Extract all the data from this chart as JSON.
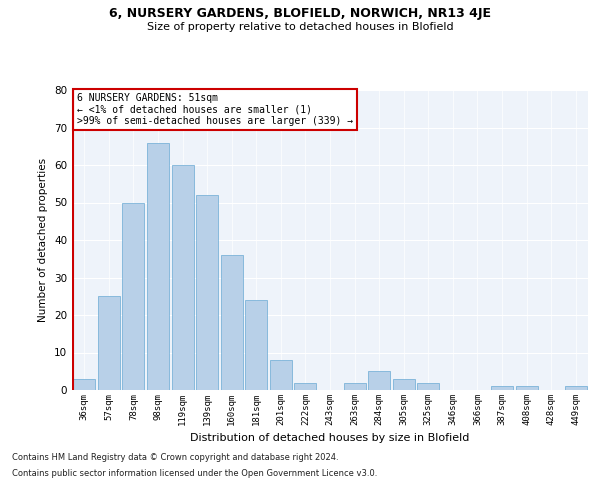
{
  "title_line1": "6, NURSERY GARDENS, BLOFIELD, NORWICH, NR13 4JE",
  "title_line2": "Size of property relative to detached houses in Blofield",
  "xlabel": "Distribution of detached houses by size in Blofield",
  "ylabel": "Number of detached properties",
  "bar_color": "#b8d0e8",
  "bar_edge_color": "#6aaad4",
  "highlight_color": "#cc0000",
  "background_color": "#eef3fa",
  "annotation_text_line1": "6 NURSERY GARDENS: 51sqm",
  "annotation_text_line2": "← <1% of detached houses are smaller (1)",
  "annotation_text_line3": ">99% of semi-detached houses are larger (339) →",
  "annotation_box_color": "#ffffff",
  "annotation_border_color": "#cc0000",
  "categories": [
    "36sqm",
    "57sqm",
    "78sqm",
    "98sqm",
    "119sqm",
    "139sqm",
    "160sqm",
    "181sqm",
    "201sqm",
    "222sqm",
    "243sqm",
    "263sqm",
    "284sqm",
    "305sqm",
    "325sqm",
    "346sqm",
    "366sqm",
    "387sqm",
    "408sqm",
    "428sqm",
    "449sqm"
  ],
  "values": [
    3,
    25,
    50,
    66,
    60,
    52,
    36,
    24,
    8,
    2,
    0,
    2,
    5,
    3,
    2,
    0,
    0,
    1,
    1,
    0,
    1
  ],
  "highlight_bar_index": 0,
  "ylim": [
    0,
    80
  ],
  "yticks": [
    0,
    10,
    20,
    30,
    40,
    50,
    60,
    70,
    80
  ],
  "footer_line1": "Contains HM Land Registry data © Crown copyright and database right 2024.",
  "footer_line2": "Contains public sector information licensed under the Open Government Licence v3.0."
}
